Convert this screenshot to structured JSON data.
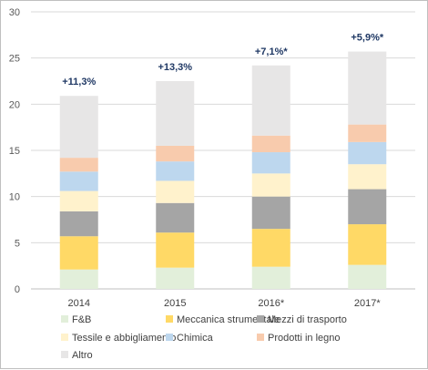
{
  "chart_data": {
    "type": "bar",
    "stacked": true,
    "categories": [
      "2014",
      "2015",
      "2016*",
      "2017*"
    ],
    "ylim": [
      0,
      30
    ],
    "yticks": [
      0,
      5,
      10,
      15,
      20,
      25,
      30
    ],
    "grid": true,
    "legend_position": "bottom",
    "series": [
      {
        "name": "F&B",
        "color": "#e2efda",
        "values": [
          2.1,
          2.3,
          2.4,
          2.6
        ]
      },
      {
        "name": "Meccanica strumentale",
        "color": "#ffd966",
        "values": [
          3.6,
          3.8,
          4.1,
          4.4
        ]
      },
      {
        "name": "Mezzi di trasporto",
        "color": "#a5a5a5",
        "values": [
          2.7,
          3.2,
          3.5,
          3.8
        ]
      },
      {
        "name": "Tessile e abbigliamento",
        "color": "#fff2cc",
        "values": [
          2.2,
          2.4,
          2.5,
          2.7
        ]
      },
      {
        "name": "Chimica",
        "color": "#bdd7ee",
        "values": [
          2.1,
          2.1,
          2.3,
          2.4
        ]
      },
      {
        "name": "Prodotti in legno",
        "color": "#f8cbad",
        "values": [
          1.5,
          1.7,
          1.8,
          1.9
        ]
      },
      {
        "name": "Altro",
        "color": "#e7e6e6",
        "values": [
          6.7,
          7.0,
          7.6,
          7.9
        ]
      }
    ],
    "annotations": [
      "+11,3%",
      "+13,3%",
      "+7,1%*",
      "+5,9%*"
    ]
  }
}
